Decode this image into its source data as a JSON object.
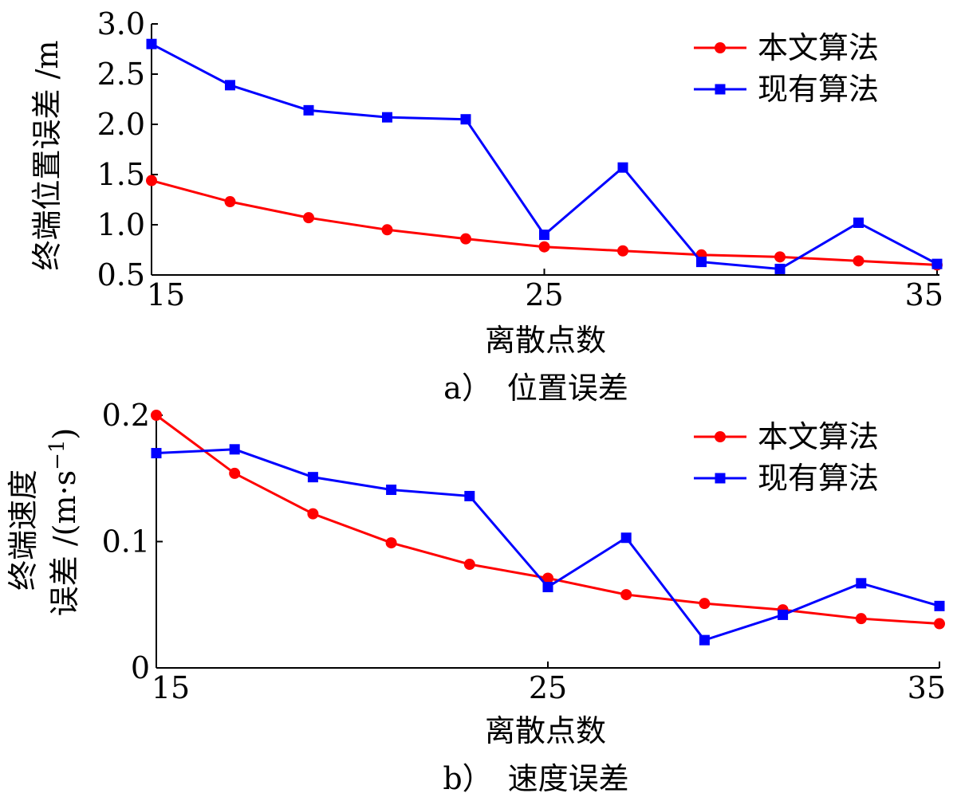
{
  "chart_data": [
    {
      "type": "line",
      "caption": "a）　位置误差",
      "xlabel": "离散点数",
      "ylabel": "终端位置误差 /m",
      "xlim": [
        15,
        35
      ],
      "ylim": [
        0.5,
        3.0
      ],
      "xticks": [
        "15",
        "25",
        "35"
      ],
      "yticks": [
        "0.5",
        "1.0",
        "1.5",
        "2.0",
        "2.5",
        "3.0"
      ],
      "grid": false,
      "legend_position": "top-right",
      "x": [
        15,
        17,
        19,
        21,
        23,
        25,
        27,
        29,
        31,
        33,
        35
      ],
      "series": [
        {
          "name": "本文算法",
          "color": "#ff0000",
          "marker": "circle",
          "values": [
            1.44,
            1.23,
            1.07,
            0.95,
            0.86,
            0.78,
            0.74,
            0.7,
            0.68,
            0.64,
            0.6
          ]
        },
        {
          "name": "现有算法",
          "color": "#0000ff",
          "marker": "square",
          "values": [
            2.8,
            2.39,
            2.14,
            2.07,
            2.05,
            0.9,
            1.57,
            0.63,
            0.56,
            1.02,
            0.61
          ]
        }
      ]
    },
    {
      "type": "line",
      "caption": "b）　速度误差",
      "xlabel": "离散点数",
      "ylabel_line1": "终端速度",
      "ylabel_line2": "误差 /(m·s",
      "ylabel_sup": "−1",
      "ylabel_close": ")",
      "xlim": [
        15,
        35
      ],
      "ylim": [
        0,
        0.2
      ],
      "xticks": [
        "15",
        "25",
        "35"
      ],
      "yticks": [
        "0",
        "0.1",
        "0.2"
      ],
      "grid": false,
      "legend_position": "top-right",
      "x": [
        15,
        17,
        19,
        21,
        23,
        25,
        27,
        29,
        31,
        33,
        35
      ],
      "series": [
        {
          "name": "本文算法",
          "color": "#ff0000",
          "marker": "circle",
          "values": [
            0.2,
            0.154,
            0.122,
            0.099,
            0.082,
            0.071,
            0.058,
            0.051,
            0.046,
            0.039,
            0.035
          ]
        },
        {
          "name": "现有算法",
          "color": "#0000ff",
          "marker": "square",
          "values": [
            0.17,
            0.173,
            0.151,
            0.141,
            0.136,
            0.064,
            0.103,
            0.022,
            0.042,
            0.067,
            0.049
          ]
        }
      ]
    }
  ]
}
